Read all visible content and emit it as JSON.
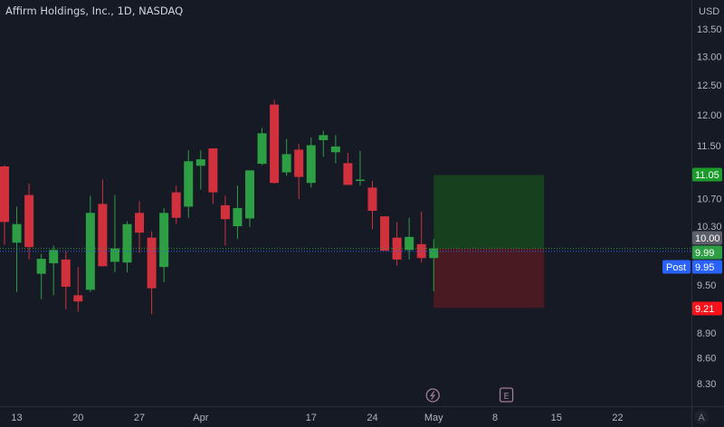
{
  "header": {
    "title": "Affirm Holdings, Inc., 1D, NASDAQ"
  },
  "chart_data": {
    "type": "candlestick",
    "title": "Affirm Holdings, Inc., 1D, NASDAQ",
    "currency": "USD",
    "y_scale": "log",
    "ylim": [
      8.2,
      13.7
    ],
    "grid": false,
    "colors": {
      "up": "#2e9e44",
      "down": "#d1303d",
      "background": "#161a25",
      "profit_zone": "#17401f",
      "loss_zone": "#4a1a22"
    },
    "y_ticks": [
      "13.50",
      "13.00",
      "12.50",
      "12.00",
      "11.50",
      "10.70",
      "10.30",
      "9.50",
      "8.90",
      "8.60",
      "8.30"
    ],
    "x_ticks": [
      {
        "label": "13",
        "index": 1
      },
      {
        "label": "20",
        "index": 6
      },
      {
        "label": "27",
        "index": 11
      },
      {
        "label": "Apr",
        "index": 16
      },
      {
        "label": "17",
        "index": 25
      },
      {
        "label": "24",
        "index": 30
      },
      {
        "label": "May",
        "index": 35
      },
      {
        "label": "8",
        "index": 40
      },
      {
        "label": "15",
        "index": 45
      },
      {
        "label": "22",
        "index": 50
      }
    ],
    "candles": [
      {
        "date": "Mar 10",
        "o": 11.18,
        "h": 11.2,
        "l": 10.04,
        "c": 10.36
      },
      {
        "date": "Mar 13",
        "o": 10.07,
        "h": 10.58,
        "l": 9.41,
        "c": 10.33
      },
      {
        "date": "Mar 14",
        "o": 10.75,
        "h": 10.92,
        "l": 9.84,
        "c": 10.01
      },
      {
        "date": "Mar 15",
        "o": 9.65,
        "h": 9.92,
        "l": 9.32,
        "c": 9.85
      },
      {
        "date": "Mar 16",
        "o": 9.79,
        "h": 10.03,
        "l": 9.37,
        "c": 9.97
      },
      {
        "date": "Mar 17",
        "o": 9.84,
        "h": 9.96,
        "l": 9.19,
        "c": 9.48
      },
      {
        "date": "Mar 20",
        "o": 9.37,
        "h": 9.74,
        "l": 9.16,
        "c": 9.29
      },
      {
        "date": "Mar 21",
        "o": 9.44,
        "h": 10.74,
        "l": 9.41,
        "c": 10.49
      },
      {
        "date": "Mar 22",
        "o": 10.62,
        "h": 10.98,
        "l": 9.75,
        "c": 9.75
      },
      {
        "date": "Mar 23",
        "o": 9.81,
        "h": 10.75,
        "l": 9.67,
        "c": 9.99
      },
      {
        "date": "Mar 24",
        "o": 9.8,
        "h": 10.37,
        "l": 9.67,
        "c": 10.33
      },
      {
        "date": "Mar 27",
        "o": 10.49,
        "h": 10.66,
        "l": 9.93,
        "c": 10.21
      },
      {
        "date": "Mar 28",
        "o": 10.14,
        "h": 10.23,
        "l": 9.13,
        "c": 9.46
      },
      {
        "date": "Mar 29",
        "o": 9.74,
        "h": 10.56,
        "l": 9.54,
        "c": 10.49
      },
      {
        "date": "Mar 30",
        "o": 10.79,
        "h": 10.89,
        "l": 10.33,
        "c": 10.42
      },
      {
        "date": "Mar 31",
        "o": 10.58,
        "h": 11.43,
        "l": 10.42,
        "c": 11.26
      },
      {
        "date": "Apr 3",
        "o": 11.19,
        "h": 11.43,
        "l": 10.83,
        "c": 11.29
      },
      {
        "date": "Apr 4",
        "o": 11.46,
        "h": 11.46,
        "l": 10.62,
        "c": 10.79
      },
      {
        "date": "Apr 5",
        "o": 10.6,
        "h": 10.74,
        "l": 10.03,
        "c": 10.4
      },
      {
        "date": "Apr 6",
        "o": 10.3,
        "h": 10.89,
        "l": 10.12,
        "c": 10.56
      },
      {
        "date": "Apr 10",
        "o": 10.41,
        "h": 11.12,
        "l": 10.29,
        "c": 11.12
      },
      {
        "date": "Apr 11",
        "o": 11.22,
        "h": 11.79,
        "l": 11.2,
        "c": 11.7
      },
      {
        "date": "Apr 12",
        "o": 12.17,
        "h": 12.25,
        "l": 10.92,
        "c": 10.93
      },
      {
        "date": "Apr 13",
        "o": 11.09,
        "h": 11.61,
        "l": 11.04,
        "c": 11.37
      },
      {
        "date": "Apr 14",
        "o": 11.44,
        "h": 11.53,
        "l": 10.69,
        "c": 11.02
      },
      {
        "date": "Apr 17",
        "o": 10.93,
        "h": 11.63,
        "l": 10.86,
        "c": 11.51
      },
      {
        "date": "Apr 18",
        "o": 11.59,
        "h": 11.74,
        "l": 11.33,
        "c": 11.67
      },
      {
        "date": "Apr 19",
        "o": 11.4,
        "h": 11.67,
        "l": 11.23,
        "c": 11.49
      },
      {
        "date": "Apr 20",
        "o": 11.23,
        "h": 11.39,
        "l": 10.9,
        "c": 10.9
      },
      {
        "date": "Apr 21",
        "o": 10.96,
        "h": 11.42,
        "l": 10.89,
        "c": 10.98
      },
      {
        "date": "Apr 24",
        "o": 10.86,
        "h": 10.96,
        "l": 10.26,
        "c": 10.52
      },
      {
        "date": "Apr 25",
        "o": 10.44,
        "h": 10.44,
        "l": 9.96,
        "c": 9.96
      },
      {
        "date": "Apr 26",
        "o": 10.14,
        "h": 10.36,
        "l": 9.76,
        "c": 9.84
      },
      {
        "date": "Apr 27",
        "o": 9.97,
        "h": 10.42,
        "l": 9.84,
        "c": 10.15
      },
      {
        "date": "Apr 28",
        "o": 10.05,
        "h": 10.51,
        "l": 9.8,
        "c": 9.86
      },
      {
        "date": "May 1",
        "o": 9.86,
        "h": 10.12,
        "l": 9.42,
        "c": 9.99
      }
    ],
    "long_position": {
      "entry": 9.99,
      "target": 11.05,
      "stop": 9.21,
      "start_index": 35,
      "end_index": 44
    },
    "price_labels": [
      {
        "name": "target",
        "text": "11.05",
        "color": "#1a9b2a"
      },
      {
        "name": "crosshair",
        "text": "10.00",
        "color": "#5d606b"
      },
      {
        "name": "last",
        "text": "9.99",
        "color": "#2e9e44"
      },
      {
        "name": "post",
        "text": "9.95",
        "color": "#2962ff",
        "tag": "Post"
      },
      {
        "name": "stop",
        "text": "9.21",
        "color": "#f7131b"
      }
    ],
    "events": [
      {
        "icon": "dividend-split-icon",
        "index": 35
      },
      {
        "icon": "earnings-icon",
        "index": 41,
        "text": "E"
      }
    ],
    "auto_scale_label": "A"
  }
}
